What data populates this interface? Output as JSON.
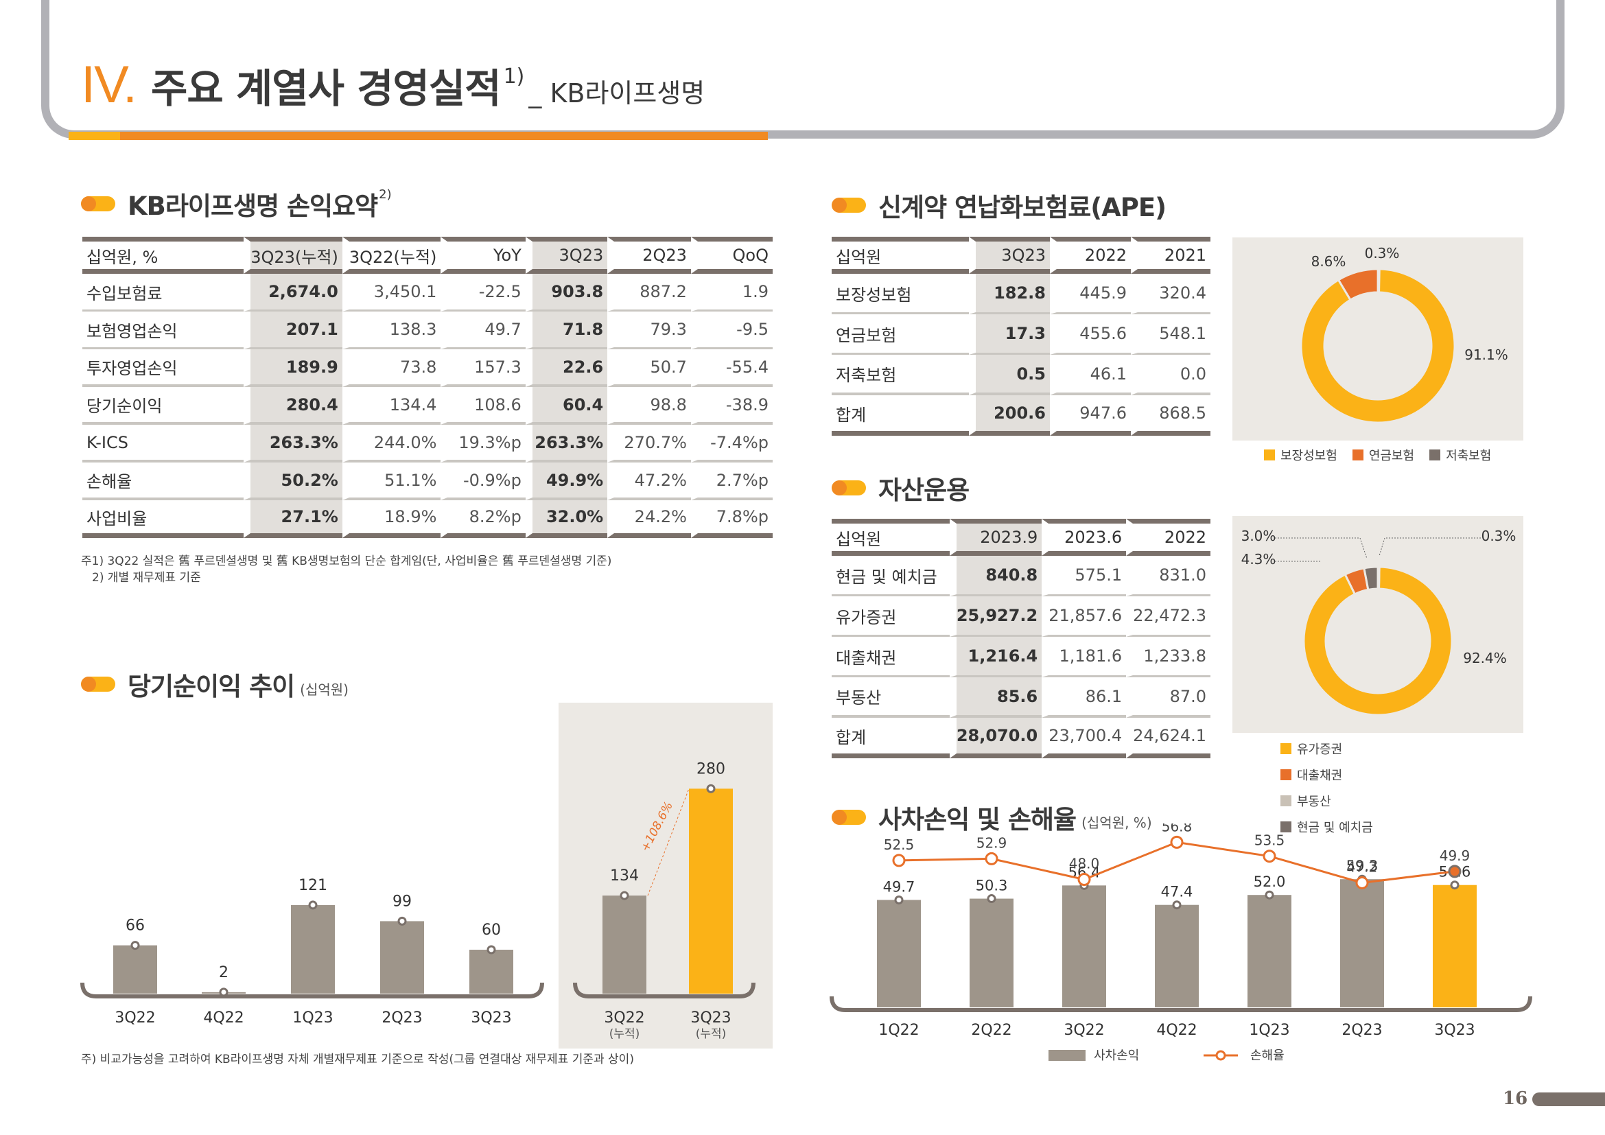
{
  "header": {
    "roman": "IV.",
    "title": "주요 계열사 경영실적",
    "title_sup": "1)",
    "subtitle": "_ KB라이프생명"
  },
  "colors": {
    "accent_yellow": "#fbb217",
    "accent_orange": "#f18a22",
    "bar_gray": "#9e958a",
    "dark_gray": "#7a706a",
    "line_orange": "#e8702a",
    "panel_bg": "#ece9e4"
  },
  "summary": {
    "heading": "KB라이프생명 손익요약",
    "heading_sup": "2)",
    "columns": [
      "십억원, %",
      "3Q23(누적)",
      "3Q22(누적)",
      "YoY",
      "3Q23",
      "2Q23",
      "QoQ"
    ],
    "rows": [
      {
        "label": "수입보험료",
        "values": [
          "2,674.0",
          "3,450.1",
          "-22.5",
          "903.8",
          "887.2",
          "1.9"
        ]
      },
      {
        "label": "보험영업손익",
        "values": [
          "207.1",
          "138.3",
          "49.7",
          "71.8",
          "79.3",
          "-9.5"
        ]
      },
      {
        "label": "투자영업손익",
        "values": [
          "189.9",
          "73.8",
          "157.3",
          "22.6",
          "50.7",
          "-55.4"
        ]
      },
      {
        "label": "당기순이익",
        "values": [
          "280.4",
          "134.4",
          "108.6",
          "60.4",
          "98.8",
          "-38.9"
        ]
      },
      {
        "label": "K-ICS",
        "values": [
          "263.3%",
          "244.0%",
          "19.3%p",
          "263.3%",
          "270.7%",
          "-7.4%p"
        ]
      },
      {
        "label": "손해율",
        "values": [
          "50.2%",
          "51.1%",
          "-0.9%p",
          "49.9%",
          "47.2%",
          "2.7%p"
        ]
      },
      {
        "label": "사업비율",
        "values": [
          "27.1%",
          "18.9%",
          "8.2%p",
          "32.0%",
          "24.2%",
          "7.8%p"
        ]
      }
    ],
    "footnotes": [
      "주1) 3Q22 실적은 舊 푸르덴셜생명 및 舊 KB생명보험의 단순 합계임(단, 사업비율은 舊 푸르덴셜생명 기준)",
      "2) 개별 재무제표 기준"
    ]
  },
  "ape": {
    "heading": "신계약 연납화보험료(APE)",
    "columns": [
      "십억원",
      "3Q23",
      "2022",
      "2021"
    ],
    "rows": [
      {
        "label": "보장성보험",
        "values": [
          "182.8",
          "445.9",
          "320.4"
        ]
      },
      {
        "label": "연금보험",
        "values": [
          "17.3",
          "455.6",
          "548.1"
        ]
      },
      {
        "label": "저축보험",
        "values": [
          "0.5",
          "46.1",
          "0.0"
        ]
      },
      {
        "label": "합계",
        "values": [
          "200.6",
          "947.6",
          "868.5"
        ]
      }
    ]
  },
  "assets": {
    "heading": "자산운용",
    "columns": [
      "십억원",
      "2023.9",
      "2023.6",
      "2022"
    ],
    "rows": [
      {
        "label": "현금 및 예치금",
        "values": [
          "840.8",
          "575.1",
          "831.0"
        ]
      },
      {
        "label": "유가증권",
        "values": [
          "25,927.2",
          "21,857.6",
          "22,472.3"
        ]
      },
      {
        "label": "대출채권",
        "values": [
          "1,216.4",
          "1,181.6",
          "1,233.8"
        ]
      },
      {
        "label": "부동산",
        "values": [
          "85.6",
          "86.1",
          "87.0"
        ]
      },
      {
        "label": "합계",
        "values": [
          "28,070.0",
          "23,700.4",
          "24,624.1"
        ]
      }
    ]
  },
  "net_income": {
    "heading": "당기순이익 추이",
    "unit": "(십억원)",
    "footnote": "주) 비교가능성을 고려하여 KB라이프생명 자체 개별재무제표 기준으로 작성(그룹 연결대상 재무제표 기준과 상이)"
  },
  "loss_ratio": {
    "heading": "사차손익 및 손해율",
    "unit": "(십억원, %)"
  },
  "chart_data": [
    {
      "id": "ape-donut",
      "type": "pie",
      "title": "신계약 연납화보험료(APE) 구성 3Q23",
      "categories": [
        "보장성보험",
        "연금보험",
        "저축보험"
      ],
      "values": [
        91.1,
        8.6,
        0.3
      ],
      "labels": [
        "91.1%",
        "8.6%",
        "0.3%"
      ],
      "colors": [
        "#fbb217",
        "#e8702a",
        "#7a706a"
      ],
      "legend": "bottom"
    },
    {
      "id": "asset-donut",
      "type": "pie",
      "title": "자산운용 구성 2023.9",
      "categories": [
        "유가증권",
        "대출채권",
        "현금 및 예치금",
        "부동산"
      ],
      "values": [
        92.4,
        4.3,
        3.0,
        0.3
      ],
      "labels": [
        "92.4%",
        "4.3%",
        "3.0%",
        "0.3%"
      ],
      "colors": [
        "#fbb217",
        "#e8702a",
        "#7a706a",
        "#c9c1b6"
      ],
      "legend_order": [
        "유가증권",
        "대출채권",
        "부동산",
        "현금 및 예치금"
      ],
      "legend": "bottom"
    },
    {
      "id": "net-income-quarterly",
      "type": "bar",
      "title": "당기순이익 추이",
      "ylabel": "십억원",
      "categories": [
        "3Q22",
        "4Q22",
        "1Q23",
        "2Q23",
        "3Q23"
      ],
      "values": [
        66,
        2,
        121,
        99,
        60
      ],
      "ylim": [
        0,
        300
      ],
      "grid": false
    },
    {
      "id": "net-income-cumulative",
      "type": "bar",
      "categories": [
        "3Q22",
        "3Q23"
      ],
      "category_sublabels": [
        "(누적)",
        "(누적)"
      ],
      "values": [
        134,
        280
      ],
      "highlight_index": 1,
      "annotation": "+108.6%",
      "ylim": [
        0,
        300
      ],
      "grid": false
    },
    {
      "id": "mortality-loss-ratio",
      "type": "bar",
      "title": "사차손익 및 손해율",
      "categories": [
        "1Q22",
        "2Q22",
        "3Q22",
        "4Q22",
        "1Q23",
        "2Q23",
        "3Q23"
      ],
      "series": [
        {
          "name": "사차손익",
          "type": "bar",
          "values": [
            49.7,
            50.3,
            56.4,
            47.4,
            52.0,
            59.3,
            56.6
          ]
        },
        {
          "name": "손해율",
          "type": "line",
          "values": [
            52.5,
            52.9,
            48.0,
            56.8,
            53.5,
            47.2,
            49.9
          ]
        }
      ],
      "highlight_index": 6,
      "legend": "bottom",
      "grid": false
    }
  ],
  "page_number": "16"
}
